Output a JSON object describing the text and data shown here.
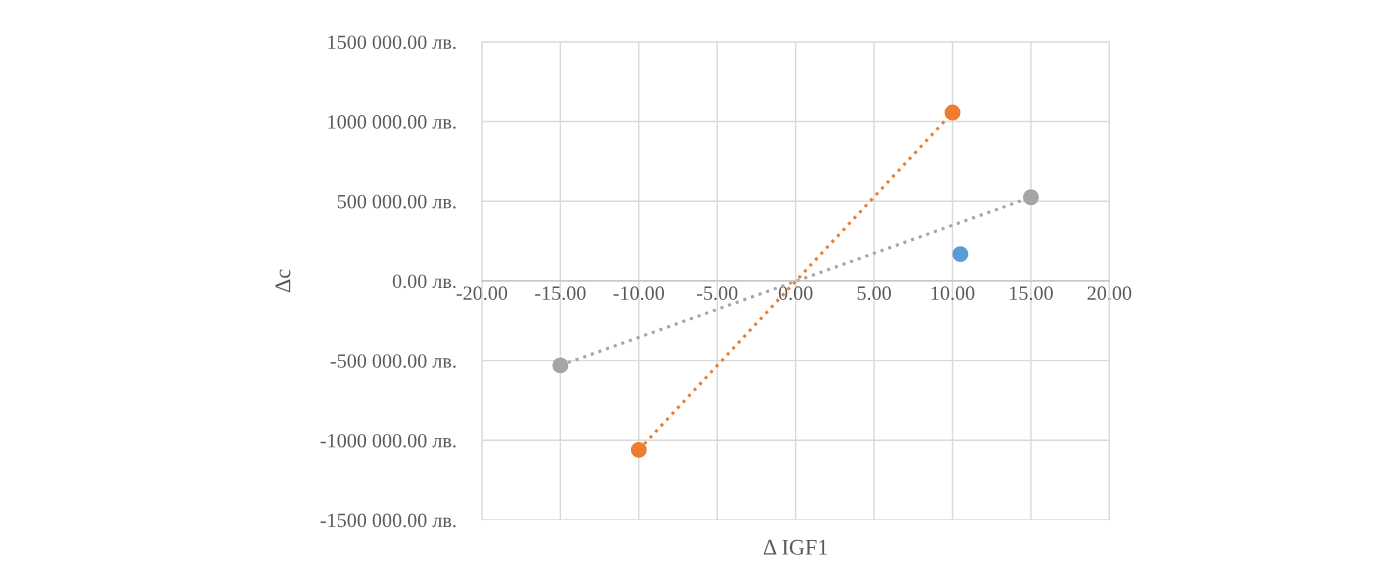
{
  "chart_data": {
    "type": "line",
    "xlabel": "Δ IGF1",
    "ylabel": "Δc",
    "xlim": [
      -20,
      20
    ],
    "xticks": [
      {
        "value": -20,
        "label": "-20.00"
      },
      {
        "value": -15,
        "label": "-15.00"
      },
      {
        "value": -10,
        "label": "-10.00"
      },
      {
        "value": -5,
        "label": "-5.00"
      },
      {
        "value": 0,
        "label": "0.00"
      },
      {
        "value": 5,
        "label": "5.00"
      },
      {
        "value": 10,
        "label": "10.00"
      },
      {
        "value": 15,
        "label": "15.00"
      },
      {
        "value": 20,
        "label": "20.00"
      }
    ],
    "ylim": [
      -1500000,
      1500000
    ],
    "yticks": [
      {
        "value": -1500000,
        "label": "-1500 000.00 лв."
      },
      {
        "value": -1000000,
        "label": "-1000 000.00 лв."
      },
      {
        "value": -500000,
        "label": "-500 000.00 лв."
      },
      {
        "value": 0,
        "label": "0.00 лв."
      },
      {
        "value": 500000,
        "label": "500 000.00 лв."
      },
      {
        "value": 1000000,
        "label": "1000 000.00 лв."
      },
      {
        "value": 1500000,
        "label": "1500 000.00 лв."
      }
    ],
    "grid": true,
    "marker": "circle",
    "series": [
      {
        "type": "scatter",
        "color": "#5b9bd5",
        "x": [
          10.5
        ],
        "values": [
          168000
        ]
      },
      {
        "line_style": "dotted",
        "color": "#ed7d31",
        "x": [
          -10,
          10
        ],
        "values": [
          -1060000,
          1056000
        ]
      },
      {
        "line_style": "dotted",
        "color": "#a5a5a5",
        "x": [
          -15,
          15
        ],
        "values": [
          -530000,
          525000
        ]
      }
    ]
  }
}
